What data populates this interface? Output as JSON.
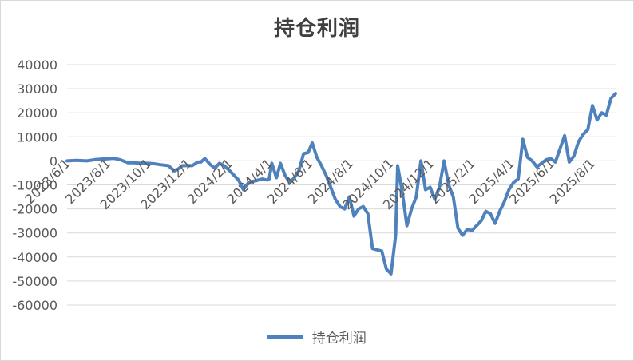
{
  "chart_data": {
    "type": "line",
    "title": "持仓利润",
    "xlabel": "",
    "ylabel": "",
    "ylim": [
      -60000,
      40000
    ],
    "yticks": [
      40000,
      30000,
      20000,
      10000,
      0,
      -10000,
      -20000,
      -30000,
      -40000,
      -50000,
      -60000
    ],
    "grid": true,
    "legend_position": "bottom",
    "xtick_labels": [
      "2023/6/1",
      "2023/8/1",
      "2023/10/1",
      "2023/12/1",
      "2024/2/1",
      "2024/4/1",
      "2024/6/1",
      "2024/8/1",
      "2024/10/1",
      "2024/12/1",
      "2025/2/1",
      "2025/4/1",
      "2025/6/1",
      "2025/8/1"
    ],
    "series": [
      {
        "name": "持仓利润",
        "color": "#4f81bd",
        "points": [
          [
            "2023-06-01",
            0
          ],
          [
            "2023-06-15",
            200
          ],
          [
            "2023-07-01",
            0
          ],
          [
            "2023-07-15",
            600
          ],
          [
            "2023-08-01",
            900
          ],
          [
            "2023-08-10",
            1100
          ],
          [
            "2023-08-20",
            500
          ],
          [
            "2023-09-01",
            -800
          ],
          [
            "2023-09-10",
            -800
          ],
          [
            "2023-09-20",
            -1000
          ],
          [
            "2023-10-01",
            -1000
          ],
          [
            "2023-10-10",
            -1200
          ],
          [
            "2023-10-20",
            -1600
          ],
          [
            "2023-11-01",
            -2000
          ],
          [
            "2023-11-10",
            -4200
          ],
          [
            "2023-11-15",
            -3500
          ],
          [
            "2023-11-22",
            -2000
          ],
          [
            "2023-12-01",
            -2000
          ],
          [
            "2023-12-07",
            -2000
          ],
          [
            "2023-12-15",
            -500
          ],
          [
            "2023-12-20",
            -500
          ],
          [
            "2023-12-26",
            1000
          ],
          [
            "2024-01-03",
            -1500
          ],
          [
            "2024-01-10",
            -3000
          ],
          [
            "2024-01-17",
            -1000
          ],
          [
            "2024-01-24",
            -2000
          ],
          [
            "2024-02-01",
            -4000
          ],
          [
            "2024-02-08",
            -6000
          ],
          [
            "2024-02-15",
            -8000
          ],
          [
            "2024-02-22",
            -12000
          ],
          [
            "2024-03-01",
            -9000
          ],
          [
            "2024-03-08",
            -8500
          ],
          [
            "2024-03-15",
            -8000
          ],
          [
            "2024-03-22",
            -7500
          ],
          [
            "2024-03-29",
            -8000
          ],
          [
            "2024-04-01",
            -7500
          ],
          [
            "2024-04-05",
            -1000
          ],
          [
            "2024-04-12",
            -7000
          ],
          [
            "2024-04-18",
            -1000
          ],
          [
            "2024-04-25",
            -6000
          ],
          [
            "2024-05-02",
            -9000
          ],
          [
            "2024-05-09",
            -7000
          ],
          [
            "2024-05-16",
            -4000
          ],
          [
            "2024-05-23",
            3000
          ],
          [
            "2024-05-30",
            3500
          ],
          [
            "2024-06-05",
            7500
          ],
          [
            "2024-06-12",
            1500
          ],
          [
            "2024-06-19",
            -2000
          ],
          [
            "2024-06-26",
            -6000
          ],
          [
            "2024-07-03",
            -11000
          ],
          [
            "2024-07-10",
            -16000
          ],
          [
            "2024-07-17",
            -19000
          ],
          [
            "2024-07-24",
            -20000
          ],
          [
            "2024-07-31",
            -15000
          ],
          [
            "2024-08-07",
            -23000
          ],
          [
            "2024-08-14",
            -20000
          ],
          [
            "2024-08-21",
            -19000
          ],
          [
            "2024-08-28",
            -22000
          ],
          [
            "2024-09-04",
            -36500
          ],
          [
            "2024-09-11",
            -37000
          ],
          [
            "2024-09-18",
            -37500
          ],
          [
            "2024-09-25",
            -45000
          ],
          [
            "2024-10-02",
            -47000
          ],
          [
            "2024-10-09",
            -31000
          ],
          [
            "2024-10-12",
            -2000
          ],
          [
            "2024-10-19",
            -13000
          ],
          [
            "2024-10-26",
            -27000
          ],
          [
            "2024-11-02",
            -20000
          ],
          [
            "2024-11-09",
            -15000
          ],
          [
            "2024-11-16",
            0
          ],
          [
            "2024-11-23",
            -12000
          ],
          [
            "2024-11-30",
            -11000
          ],
          [
            "2024-12-07",
            -16000
          ],
          [
            "2024-12-14",
            -11000
          ],
          [
            "2024-12-21",
            0
          ],
          [
            "2024-12-28",
            -10000
          ],
          [
            "2025-01-04",
            -15000
          ],
          [
            "2025-01-11",
            -28000
          ],
          [
            "2025-01-18",
            -31000
          ],
          [
            "2025-01-25",
            -28500
          ],
          [
            "2025-02-01",
            -29000
          ],
          [
            "2025-02-08",
            -27000
          ],
          [
            "2025-02-15",
            -25000
          ],
          [
            "2025-02-22",
            -21000
          ],
          [
            "2025-03-01",
            -22000
          ],
          [
            "2025-03-08",
            -26000
          ],
          [
            "2025-03-15",
            -21000
          ],
          [
            "2025-03-22",
            -17000
          ],
          [
            "2025-03-29",
            -12000
          ],
          [
            "2025-04-05",
            -9000
          ],
          [
            "2025-04-12",
            -7500
          ],
          [
            "2025-04-19",
            9000
          ],
          [
            "2025-04-26",
            1500
          ],
          [
            "2025-05-03",
            0
          ],
          [
            "2025-05-10",
            -2500
          ],
          [
            "2025-05-17",
            -1000
          ],
          [
            "2025-05-24",
            500
          ],
          [
            "2025-05-31",
            1000
          ],
          [
            "2025-06-07",
            -500
          ],
          [
            "2025-06-14",
            5000
          ],
          [
            "2025-06-21",
            10500
          ],
          [
            "2025-06-28",
            -500
          ],
          [
            "2025-07-05",
            2000
          ],
          [
            "2025-07-12",
            8000
          ],
          [
            "2025-07-19",
            11000
          ],
          [
            "2025-07-26",
            13000
          ],
          [
            "2025-08-02",
            23000
          ],
          [
            "2025-08-09",
            17000
          ],
          [
            "2025-08-16",
            20000
          ],
          [
            "2025-08-23",
            19000
          ],
          [
            "2025-08-30",
            26000
          ],
          [
            "2025-09-06",
            28000
          ]
        ]
      }
    ]
  }
}
